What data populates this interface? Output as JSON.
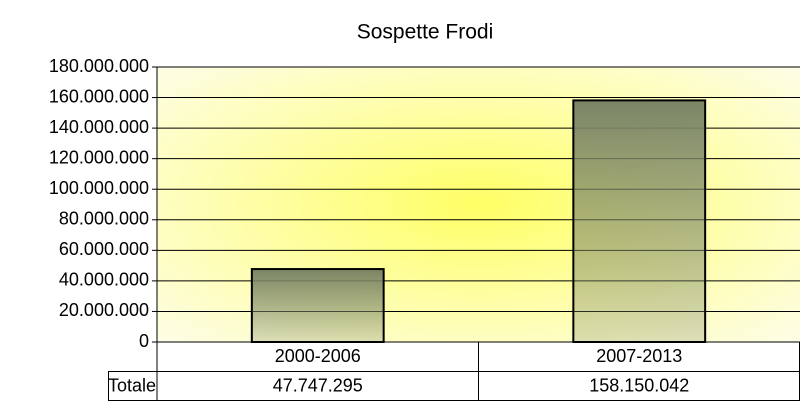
{
  "chart_data": {
    "type": "bar",
    "title": "Sospette Frodi",
    "categories": [
      "2000-2006",
      "2007-2013"
    ],
    "series": [
      {
        "name": "Totale",
        "color": "#7b8566",
        "values": [
          47747295,
          158150042
        ],
        "value_labels": [
          "47.747.295",
          "158.150.042"
        ]
      }
    ],
    "ylim": [
      0,
      180000000
    ],
    "yticks": [
      0,
      {
        "value": 20000000,
        "label": "20.000.000"
      },
      {
        "value": 40000000,
        "label": "40.000.000"
      },
      {
        "value": 60000000,
        "label": "60.000.000"
      },
      {
        "value": 80000000,
        "label": "80.000.000"
      },
      {
        "value": 100000000,
        "label": "100.000.000"
      },
      {
        "value": 120000000,
        "label": "120.000.000"
      },
      {
        "value": 140000000,
        "label": "140.000.000"
      },
      {
        "value": 160000000,
        "label": "160.000.000"
      },
      {
        "value": 180000000,
        "label": "180.000.000"
      }
    ],
    "grid": true
  }
}
